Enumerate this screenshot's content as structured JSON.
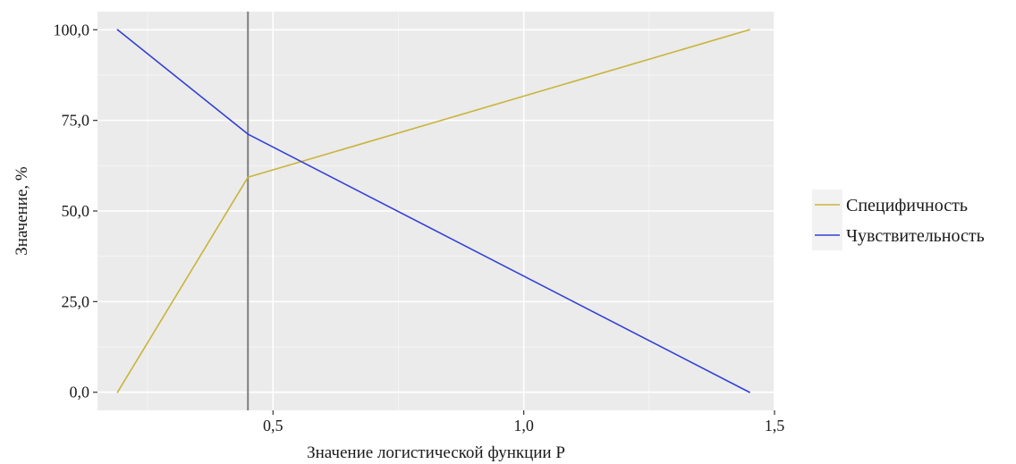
{
  "chart_data": {
    "type": "line",
    "xlabel": "Значение логистической функции P",
    "ylabel": "Значение, %",
    "xlim": [
      0.15,
      1.5
    ],
    "ylim": [
      -5,
      105
    ],
    "x_ticks": [
      0.5,
      1.0,
      1.5
    ],
    "x_tick_labels": [
      "0,5",
      "1,0",
      "1,5"
    ],
    "y_ticks": [
      0,
      25,
      50,
      75,
      100
    ],
    "y_tick_labels": [
      "0,0",
      "25,0",
      "50,0",
      "75,0",
      "100,0"
    ],
    "vline": {
      "x": 0.45,
      "color": "#7f7f7f"
    },
    "series": [
      {
        "name": "Специфичность",
        "color": "#c9b43a",
        "x": [
          0.19,
          0.45,
          1.45
        ],
        "y": [
          0,
          59.3,
          100
        ]
      },
      {
        "name": "Чувствительность",
        "color": "#3340d6",
        "x": [
          0.19,
          0.45,
          1.45
        ],
        "y": [
          100,
          71.2,
          0
        ]
      }
    ],
    "grid": true,
    "panel_background": "#ebebeb",
    "legend_position": "right"
  }
}
